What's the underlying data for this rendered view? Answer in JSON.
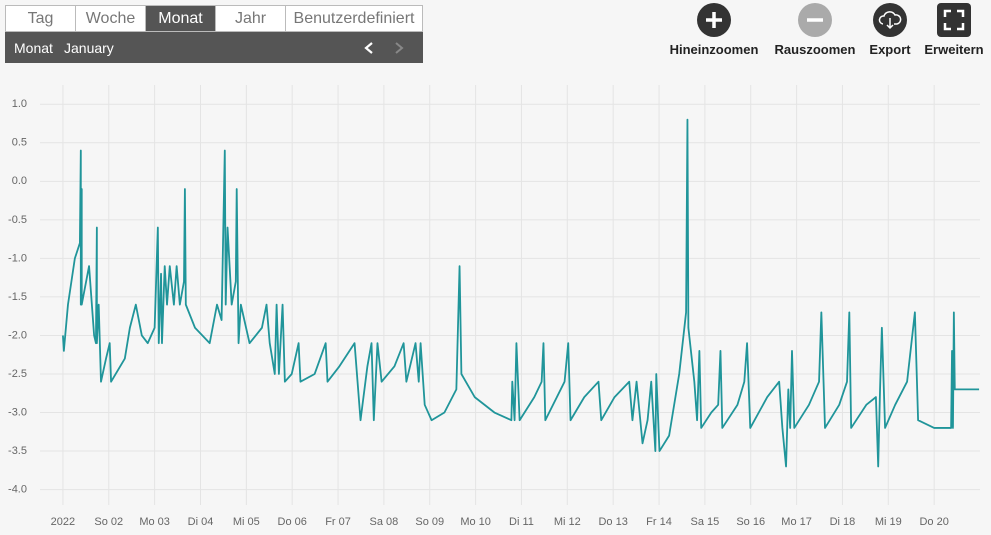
{
  "tabs": [
    {
      "label": "Tag"
    },
    {
      "label": "Woche"
    },
    {
      "label": "Monat",
      "active": true
    },
    {
      "label": "Jahr"
    },
    {
      "label": "Benutzerdefiniert"
    }
  ],
  "period": {
    "label": "Monat",
    "value": "January"
  },
  "toolbar": [
    {
      "label": "Hineinzoomen"
    },
    {
      "label": "Rauszoomen"
    },
    {
      "label": "Export"
    },
    {
      "label": "Erweitern"
    }
  ],
  "chart_data": {
    "type": "line",
    "color": "#20959a",
    "grid": true,
    "xlim": [
      -0.5,
      20
    ],
    "ylim": [
      -4.2,
      1.25
    ],
    "xticks": [
      {
        "value": 0,
        "label": "2022"
      },
      {
        "value": 1,
        "label": "So 02"
      },
      {
        "value": 2,
        "label": "Mo 03"
      },
      {
        "value": 3,
        "label": "Di 04"
      },
      {
        "value": 4,
        "label": "Mi 05"
      },
      {
        "value": 5,
        "label": "Do 06"
      },
      {
        "value": 6,
        "label": "Fr 07"
      },
      {
        "value": 7,
        "label": "Sa 08"
      },
      {
        "value": 8,
        "label": "So 09"
      },
      {
        "value": 9,
        "label": "Mo 10"
      },
      {
        "value": 10,
        "label": "Di 11"
      },
      {
        "value": 11,
        "label": "Mi 12"
      },
      {
        "value": 12,
        "label": "Do 13"
      },
      {
        "value": 13,
        "label": "Fr 14"
      },
      {
        "value": 14,
        "label": "Sa 15"
      },
      {
        "value": 15,
        "label": "So 16"
      },
      {
        "value": 16,
        "label": "Mo 17"
      },
      {
        "value": 17,
        "label": "Di 18"
      },
      {
        "value": 18,
        "label": "Mi 19"
      },
      {
        "value": 19,
        "label": "Do 20"
      }
    ],
    "yticks": [
      {
        "value": 1,
        "label": "1.0"
      },
      0.5,
      {
        "value": 0,
        "label": "0.0"
      },
      -0.5,
      {
        "value": -1,
        "label": "-1.0"
      },
      -1.5,
      {
        "value": -2,
        "label": "-2.0"
      },
      -2.5,
      {
        "value": -3,
        "label": "-3.0"
      },
      -3.5,
      {
        "value": -4,
        "label": "-4.0"
      }
    ],
    "x": [
      0,
      0.02,
      0.11,
      0.26,
      0.37,
      0.39,
      0.39,
      0.41,
      0.41,
      0.57,
      0.68,
      0.72,
      0.74,
      0.74,
      0.78,
      0.83,
      0.94,
      1.02,
      1.05,
      1.35,
      1.46,
      1.59,
      1.72,
      1.85,
      2.0,
      2.07,
      2.09,
      2.14,
      2.16,
      2.22,
      2.27,
      2.33,
      2.42,
      2.48,
      2.55,
      2.64,
      2.66,
      2.68,
      2.88,
      3.2,
      3.36,
      3.46,
      3.53,
      3.55,
      3.59,
      3.68,
      3.77,
      3.79,
      3.83,
      3.88,
      4.07,
      4.34,
      4.44,
      4.51,
      4.62,
      4.66,
      4.71,
      4.79,
      4.84,
      4.99,
      5.14,
      5.18,
      5.49,
      5.73,
      5.77,
      6.03,
      6.36,
      6.49,
      6.64,
      6.73,
      6.78,
      6.86,
      6.95,
      7.23,
      7.43,
      7.49,
      7.69,
      7.76,
      7.8,
      7.89,
      8.04,
      8.32,
      8.58,
      8.65,
      8.69,
      8.98,
      9.41,
      9.78,
      9.8,
      9.85,
      9.89,
      9.96,
      10.28,
      10.44,
      10.48,
      10.52,
      10.94,
      11.02,
      11.07,
      11.37,
      11.68,
      11.74,
      12.03,
      12.35,
      12.42,
      12.51,
      12.64,
      12.75,
      12.83,
      12.92,
      12.94,
      13.01,
      13.22,
      13.44,
      13.59,
      13.62,
      13.64,
      13.77,
      13.83,
      13.88,
      13.92,
      14.14,
      14.29,
      14.34,
      14.38,
      14.71,
      14.86,
      14.92,
      14.99,
      15.36,
      15.62,
      15.69,
      15.77,
      15.82,
      15.86,
      15.9,
      15.95,
      16.27,
      16.49,
      16.54,
      16.62,
      16.93,
      17.1,
      17.15,
      17.19,
      17.52,
      17.73,
      17.78,
      17.82,
      17.86,
      17.93,
      18.15,
      18.41,
      18.58,
      18.65,
      19.0,
      19.37,
      19.39,
      19.41,
      19.43,
      19.45,
      19.98
    ],
    "values": [
      -2.0,
      -2.2,
      -1.6,
      -1.0,
      -0.8,
      0.4,
      -1.6,
      -0.1,
      -1.6,
      -1.1,
      -2.0,
      -2.1,
      -0.6,
      -2.1,
      -1.6,
      -2.6,
      -2.3,
      -2.1,
      -2.6,
      -2.3,
      -1.9,
      -1.6,
      -2.0,
      -2.1,
      -1.9,
      -0.6,
      -2.1,
      -1.2,
      -2.1,
      -1.1,
      -1.6,
      -1.1,
      -1.6,
      -1.1,
      -1.6,
      -1.3,
      -0.1,
      -1.6,
      -1.9,
      -2.1,
      -1.6,
      -1.8,
      0.4,
      -1.6,
      -0.6,
      -1.6,
      -1.3,
      -0.1,
      -2.1,
      -1.6,
      -2.1,
      -1.9,
      -1.6,
      -2.1,
      -2.5,
      -1.6,
      -2.5,
      -1.6,
      -2.6,
      -2.5,
      -2.1,
      -2.6,
      -2.5,
      -2.1,
      -2.6,
      -2.4,
      -2.1,
      -3.1,
      -2.4,
      -2.1,
      -3.1,
      -2.1,
      -2.6,
      -2.4,
      -2.1,
      -2.6,
      -2.1,
      -2.6,
      -2.1,
      -2.9,
      -3.1,
      -3.0,
      -2.7,
      -1.1,
      -2.5,
      -2.8,
      -3.0,
      -3.1,
      -2.6,
      -3.1,
      -2.1,
      -3.1,
      -2.8,
      -2.6,
      -2.1,
      -3.1,
      -2.6,
      -2.1,
      -3.1,
      -2.8,
      -2.6,
      -3.1,
      -2.8,
      -2.6,
      -3.1,
      -2.6,
      -3.4,
      -3.1,
      -2.6,
      -3.5,
      -2.5,
      -3.5,
      -3.3,
      -2.5,
      -1.7,
      0.8,
      -1.9,
      -2.6,
      -3.1,
      -2.2,
      -3.2,
      -3.0,
      -2.9,
      -2.2,
      -3.2,
      -2.9,
      -2.6,
      -2.1,
      -3.2,
      -2.8,
      -2.6,
      -3.2,
      -3.7,
      -2.7,
      -3.2,
      -2.2,
      -3.2,
      -2.9,
      -2.6,
      -1.7,
      -3.2,
      -2.9,
      -2.6,
      -1.7,
      -3.2,
      -2.9,
      -2.8,
      -3.7,
      -2.7,
      -1.9,
      -3.2,
      -2.9,
      -2.6,
      -1.7,
      -3.1,
      -3.2,
      -3.2,
      -2.2,
      -3.2,
      -1.7,
      -2.7,
      -2.7
    ]
  }
}
